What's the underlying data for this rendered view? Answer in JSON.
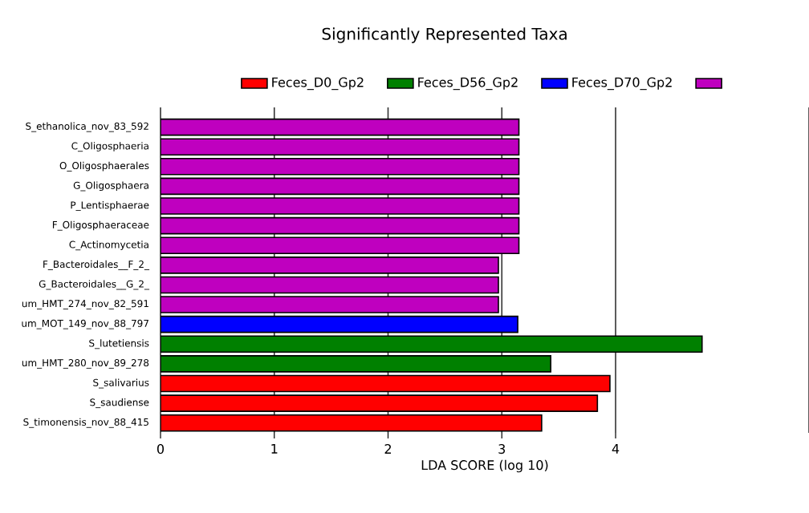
{
  "chart_data": {
    "type": "bar",
    "orientation": "horizontal",
    "title": "Significantly Represented Taxa",
    "xlabel": "LDA SCORE (log 10)",
    "categories": [
      "S_ethanolica_nov_83_592",
      "C_Oligosphaeria",
      "O_Oligosphaerales",
      "G_Oligosphaera",
      "P_Lentisphaerae",
      "F_Oligosphaeraceae",
      "C_Actinomycetia",
      "F_Bacteroidales__F_2_",
      "G_Bacteroidales__G_2_",
      "um_HMT_274_nov_82_591",
      "um_MOT_149_nov_88_797",
      "S_lutetiensis",
      "um_HMT_280_nov_89_278",
      "S_salivarius",
      "S_saudiense",
      "S_timonensis_nov_88_415"
    ],
    "series": [
      {
        "name": "Feces_D0_Gp2",
        "color": "#ff0000",
        "values": [
          null,
          null,
          null,
          null,
          null,
          null,
          null,
          null,
          null,
          null,
          null,
          null,
          null,
          3.95,
          3.84,
          3.35
        ]
      },
      {
        "name": "Feces_D56_Gp2",
        "color": "#008000",
        "values": [
          null,
          null,
          null,
          null,
          null,
          null,
          null,
          null,
          null,
          null,
          null,
          4.76,
          3.43,
          null,
          null,
          null
        ]
      },
      {
        "name": "Feces_D70_Gp2",
        "color": "#0000ff",
        "values": [
          null,
          null,
          null,
          null,
          null,
          null,
          null,
          null,
          null,
          null,
          3.14,
          null,
          null,
          null,
          null,
          null
        ]
      },
      {
        "color": "#bf00bf",
        "values": [
          3.15,
          3.15,
          3.15,
          3.15,
          3.15,
          3.15,
          3.15,
          2.97,
          2.97,
          2.97,
          null,
          null,
          null,
          null,
          null,
          null
        ]
      }
    ],
    "xlim": [
      0,
      5.7
    ],
    "xticks": [
      0,
      1,
      2,
      3,
      4
    ],
    "grid": "x",
    "legend": "top"
  }
}
